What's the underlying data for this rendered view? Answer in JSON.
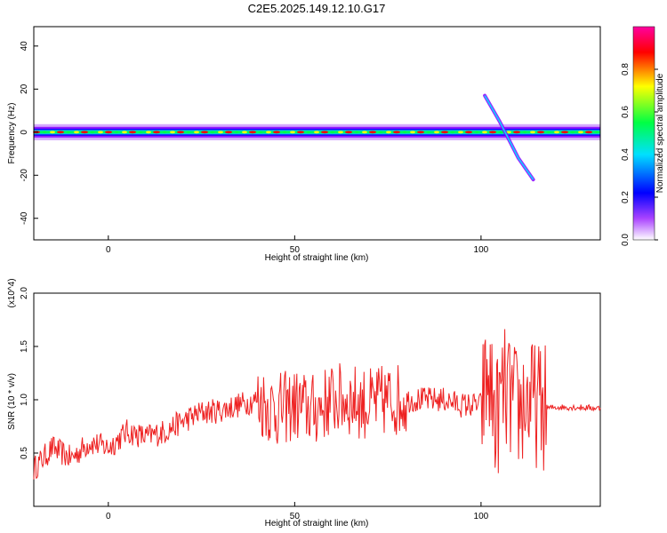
{
  "title": "C2E5.2025.149.12.10.G17",
  "colorbar": {
    "label": "Normalized spectral amplitude",
    "ticks": [
      "0.0",
      "0.2",
      "0.4",
      "0.6",
      "0.8"
    ],
    "colors": [
      "#ffffff",
      "#8800ff",
      "#0000ff",
      "#00e0ff",
      "#00ff44",
      "#ffff00",
      "#ff0000",
      "#ff00a0"
    ]
  },
  "chart_data": [
    {
      "type": "heatmap",
      "xlabel": "Height of straight line (km)",
      "ylabel": "Frequency (Hz)",
      "xlim": [
        -20,
        132
      ],
      "ylim": [
        -50,
        49
      ],
      "xticks": [
        "0",
        "50",
        "100"
      ],
      "yticks": [
        "-40",
        "-20",
        "0",
        "20",
        "40"
      ],
      "zlim": [
        0,
        1
      ],
      "main_band": {
        "frequency_hz": 0,
        "x_range": [
          -20,
          132
        ]
      },
      "chirp_segment": {
        "x": [
          101,
          105,
          110,
          114
        ],
        "frequency_hz": [
          17,
          5,
          -12,
          -22
        ]
      },
      "grid": false
    },
    {
      "type": "line",
      "xlabel": "Height of straight line (km)",
      "ylabel": "SNR (10 * v/v)",
      "y_multiplier": "(x10^4)",
      "xlim": [
        -20,
        132
      ],
      "ylim": [
        0,
        2.0
      ],
      "xticks": [
        "0",
        "50",
        "100"
      ],
      "yticks": [
        "0.5",
        "1.0",
        "1.5",
        "2.0"
      ],
      "color": "#ee2222",
      "series": [
        {
          "x": [
            -20,
            -15,
            -10,
            -5,
            0,
            5,
            10,
            15,
            20,
            25,
            30,
            35,
            40,
            45,
            50,
            55,
            60,
            65,
            70,
            75,
            80,
            85,
            90,
            95,
            100,
            102,
            104,
            106,
            108,
            110,
            112,
            115,
            118,
            120,
            125,
            132
          ],
          "y": [
            0.35,
            0.55,
            0.45,
            0.6,
            0.55,
            0.7,
            0.65,
            0.7,
            0.8,
            0.88,
            0.9,
            0.95,
            1.0,
            0.9,
            0.95,
            0.9,
            1.0,
            1.0,
            0.95,
            1.0,
            1.0,
            1.0,
            1.0,
            0.95,
            0.95,
            1.2,
            0.8,
            1.1,
            1.0,
            0.9,
            1.0,
            0.95,
            0.92,
            0.93,
            0.93,
            0.92
          ]
        }
      ]
    }
  ]
}
